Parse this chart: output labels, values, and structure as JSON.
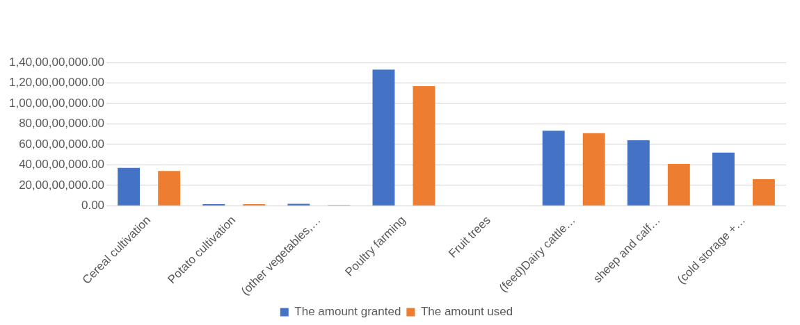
{
  "chart_data": {
    "type": "bar",
    "categories": [
      "Cereal cultivation",
      "Potato cultivation",
      "(other vegetables,…",
      "Poultry farming",
      "Fruit trees",
      "(feed)Dairy cattle…",
      "sheep and calf…",
      "(cold storage +…"
    ],
    "series": [
      {
        "name": "The amount granted",
        "color": "#4472c4",
        "values": [
          370000000,
          15000000,
          20000000,
          1330000000,
          0,
          733000000,
          640000000,
          520000000
        ]
      },
      {
        "name": "The amount used",
        "color": "#ed7d31",
        "values": [
          340000000,
          15000000,
          7000000,
          1170000000,
          0,
          710000000,
          410000000,
          260000000
        ]
      }
    ],
    "ylim": [
      0,
      1400000000
    ],
    "yticks": [
      {
        "value": 0,
        "label": "0.00"
      },
      {
        "value": 200000000,
        "label": "20,00,00,000.00"
      },
      {
        "value": 400000000,
        "label": "40,00,00,000.00"
      },
      {
        "value": 600000000,
        "label": "60,00,00,000.00"
      },
      {
        "value": 800000000,
        "label": "80,00,00,000.00"
      },
      {
        "value": 1000000000,
        "label": "1,00,00,00,000.00"
      },
      {
        "value": 1200000000,
        "label": "1,20,00,00,000.00"
      },
      {
        "value": 1400000000,
        "label": "1,40,00,00,000.00"
      }
    ],
    "grid": "y",
    "legend": "bottom"
  }
}
